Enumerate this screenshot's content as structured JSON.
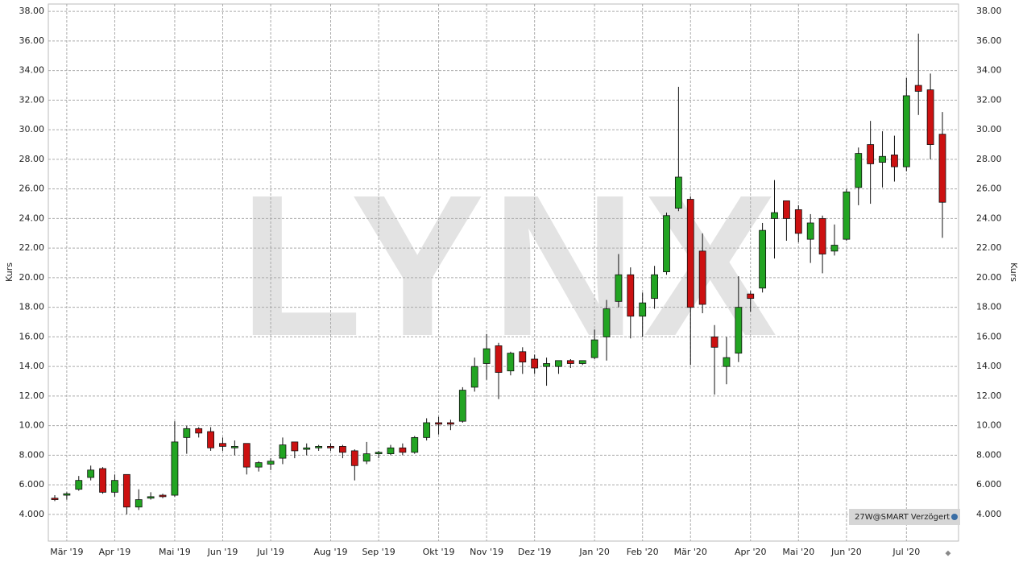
{
  "chart_data": {
    "type": "candlestick",
    "y_label": "Kurs",
    "watermark": "LYNX",
    "source_label": "27W@SMART Verzögert",
    "categories": [
      null,
      "Mär '19",
      null,
      null,
      null,
      "Apr '19",
      null,
      null,
      null,
      null,
      "Mai '19",
      null,
      null,
      null,
      "Jun '19",
      null,
      null,
      null,
      "Jul '19",
      null,
      null,
      null,
      null,
      "Aug '19",
      null,
      null,
      null,
      "Sep '19",
      null,
      null,
      null,
      null,
      "Okt '19",
      null,
      null,
      null,
      "Nov '19",
      null,
      null,
      null,
      "Dez '19",
      null,
      null,
      null,
      null,
      "Jan '20",
      null,
      null,
      null,
      "Feb '20",
      null,
      null,
      null,
      "Mär '20",
      null,
      null,
      null,
      null,
      "Apr '20",
      null,
      null,
      null,
      "Mai '20",
      null,
      null,
      null,
      "Jun '20",
      null,
      null,
      null,
      null,
      "Jul '20",
      null,
      null,
      null
    ],
    "open": [
      5.1,
      5.3,
      5.7,
      6.5,
      7.1,
      5.5,
      6.7,
      4.5,
      5.1,
      5.3,
      5.3,
      9.2,
      9.8,
      9.6,
      8.8,
      8.5,
      8.8,
      7.2,
      7.4,
      7.8,
      8.9,
      8.4,
      8.5,
      8.6,
      8.6,
      8.3,
      7.6,
      8.1,
      8.1,
      8.5,
      8.2,
      9.2,
      10.2,
      10.2,
      10.3,
      12.6,
      14.2,
      15.4,
      13.7,
      15.0,
      14.5,
      14.0,
      14.0,
      14.4,
      14.2,
      14.6,
      16.0,
      18.4,
      20.2,
      17.4,
      18.6,
      20.4,
      24.7,
      25.3,
      21.8,
      16.0,
      14.0,
      14.9,
      18.9,
      19.3,
      24.0,
      25.2,
      24.6,
      22.6,
      24.0,
      21.8,
      22.6,
      26.1,
      29.0,
      27.8,
      28.3,
      27.5,
      33.0,
      32.7,
      29.7
    ],
    "high": [
      5.3,
      5.5,
      6.6,
      7.3,
      7.2,
      6.7,
      6.7,
      5.7,
      5.5,
      5.4,
      10.3,
      10.0,
      9.9,
      9.9,
      9.2,
      9.0,
      8.8,
      7.6,
      7.8,
      9.2,
      8.9,
      8.8,
      8.7,
      8.8,
      8.7,
      8.4,
      8.9,
      8.3,
      8.7,
      8.8,
      9.3,
      10.5,
      10.6,
      10.4,
      12.6,
      14.6,
      16.2,
      15.6,
      15.0,
      15.3,
      14.8,
      14.6,
      14.4,
      14.5,
      14.4,
      16.5,
      18.5,
      21.6,
      20.7,
      19.0,
      20.8,
      24.4,
      32.9,
      25.5,
      23.0,
      16.8,
      16.0,
      20.1,
      19.1,
      23.7,
      26.6,
      25.2,
      24.9,
      24.3,
      24.2,
      23.6,
      26.0,
      28.8,
      30.6,
      29.9,
      29.6,
      33.5,
      36.5,
      33.8,
      31.2
    ],
    "low": [
      4.9,
      5.0,
      5.6,
      6.3,
      5.4,
      5.2,
      4.0,
      4.3,
      5.0,
      5.1,
      5.2,
      8.1,
      9.2,
      8.3,
      8.3,
      8.0,
      6.7,
      6.9,
      7.0,
      7.4,
      7.8,
      8.0,
      8.3,
      8.3,
      7.8,
      6.3,
      7.4,
      7.8,
      8.0,
      8.0,
      8.1,
      9.0,
      9.4,
      9.7,
      10.2,
      12.3,
      13.1,
      11.8,
      13.4,
      13.5,
      13.5,
      12.7,
      13.5,
      13.9,
      14.1,
      14.5,
      14.4,
      18.0,
      15.9,
      16.0,
      17.9,
      20.2,
      24.5,
      14.1,
      17.6,
      12.1,
      12.8,
      14.3,
      17.7,
      19.0,
      21.3,
      22.5,
      22.4,
      21.0,
      20.3,
      21.5,
      22.5,
      24.9,
      25.0,
      26.1,
      26.5,
      27.2,
      31.0,
      28.0,
      22.7
    ],
    "close": [
      5.0,
      5.4,
      6.3,
      7.0,
      5.5,
      6.3,
      4.5,
      5.0,
      5.2,
      5.2,
      8.9,
      9.8,
      9.5,
      8.5,
      8.6,
      8.6,
      7.2,
      7.5,
      7.6,
      8.7,
      8.3,
      8.5,
      8.6,
      8.5,
      8.2,
      7.3,
      8.1,
      8.2,
      8.5,
      8.2,
      9.2,
      10.2,
      10.1,
      10.1,
      12.4,
      14.0,
      15.2,
      13.6,
      14.9,
      14.3,
      13.9,
      14.2,
      14.4,
      14.2,
      14.4,
      15.8,
      17.9,
      20.2,
      17.4,
      18.3,
      20.2,
      24.2,
      26.8,
      18.0,
      18.2,
      15.3,
      14.6,
      18.0,
      18.6,
      23.2,
      24.4,
      24.0,
      23.0,
      23.7,
      21.6,
      22.2,
      25.8,
      28.4,
      27.7,
      28.2,
      27.5,
      32.3,
      32.6,
      29.0,
      25.1
    ],
    "up_color": "#22a422",
    "down_color": "#cc1111",
    "ylim": [
      2.2,
      38.5
    ],
    "yticks": [
      {
        "value": 4,
        "label": "4.000"
      },
      {
        "value": 6,
        "label": "6.000"
      },
      {
        "value": 8,
        "label": "8.000"
      },
      {
        "value": 10,
        "label": "10.00"
      },
      {
        "value": 12,
        "label": "12.00"
      },
      {
        "value": 14,
        "label": "14.00"
      },
      {
        "value": 16,
        "label": "16.00"
      },
      {
        "value": 18,
        "label": "18.00"
      },
      {
        "value": 20,
        "label": "20.00"
      },
      {
        "value": 22,
        "label": "22.00"
      },
      {
        "value": 24,
        "label": "24.00"
      },
      {
        "value": 26,
        "label": "26.00"
      },
      {
        "value": 28,
        "label": "28.00"
      },
      {
        "value": 30,
        "label": "30.00"
      },
      {
        "value": 32,
        "label": "32.00"
      },
      {
        "value": 34,
        "label": "34.00"
      },
      {
        "value": 36,
        "label": "36.00"
      },
      {
        "value": 38,
        "label": "38.00"
      }
    ],
    "grid": true
  }
}
